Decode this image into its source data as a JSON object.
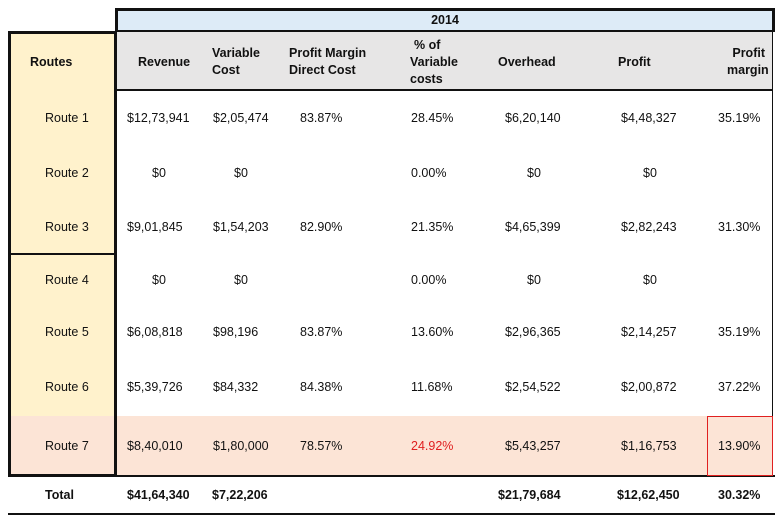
{
  "year": "2014",
  "headers": {
    "routes": "Routes",
    "revenue": "Revenue",
    "variable_cost": [
      "Variable",
      "Cost"
    ],
    "pm_direct": [
      "Profit Margin",
      "Direct Cost"
    ],
    "pct_variable": [
      "% of",
      "Variable",
      "costs"
    ],
    "overhead": "Overhead",
    "profit": "Profit",
    "profit_margin": [
      "Profit",
      "margin"
    ]
  },
  "rows": [
    {
      "route": "Route 1",
      "revenue": "$12,73,941",
      "variable_cost": "$2,05,474",
      "pm_direct": "83.87%",
      "pct_variable": "28.45%",
      "overhead": "$6,20,140",
      "profit": "$4,48,327",
      "profit_margin": "35.19%"
    },
    {
      "route": "Route 2",
      "revenue": "$0",
      "variable_cost": "$0",
      "pm_direct": "",
      "pct_variable": "0.00%",
      "overhead": "$0",
      "profit": "$0",
      "profit_margin": ""
    },
    {
      "route": "Route 3",
      "revenue": "$9,01,845",
      "variable_cost": "$1,54,203",
      "pm_direct": "82.90%",
      "pct_variable": "21.35%",
      "overhead": "$4,65,399",
      "profit": "$2,82,243",
      "profit_margin": "31.30%"
    },
    {
      "route": "Route 4",
      "revenue": "$0",
      "variable_cost": "$0",
      "pm_direct": "",
      "pct_variable": "0.00%",
      "overhead": "$0",
      "profit": "$0",
      "profit_margin": ""
    },
    {
      "route": "Route 5",
      "revenue": "$6,08,818",
      "variable_cost": "$98,196",
      "pm_direct": "83.87%",
      "pct_variable": "13.60%",
      "overhead": "$2,96,365",
      "profit": "$2,14,257",
      "profit_margin": "35.19%"
    },
    {
      "route": "Route 6",
      "revenue": "$5,39,726",
      "variable_cost": "$84,332",
      "pm_direct": "84.38%",
      "pct_variable": "11.68%",
      "overhead": "$2,54,522",
      "profit": "$2,00,872",
      "profit_margin": "37.22%"
    },
    {
      "route": "Route 7",
      "revenue": "$8,40,010",
      "variable_cost": "$1,80,000",
      "pm_direct": "78.57%",
      "pct_variable": "24.92%",
      "overhead": "$5,43,257",
      "profit": "$1,16,753",
      "profit_margin": "13.90%"
    }
  ],
  "total": {
    "route": "Total",
    "revenue": "$41,64,340",
    "variable_cost": "$7,22,206",
    "overhead": "$21,79,684",
    "profit": "$12,62,450",
    "profit_margin": "30.32%"
  },
  "colors": {
    "routes_bg": "#fff2cc",
    "header_bg": "#e7e6e6",
    "year_bg": "#ddebf7",
    "highlight_row_bg": "#fce4d6",
    "alert": "#e02020"
  }
}
